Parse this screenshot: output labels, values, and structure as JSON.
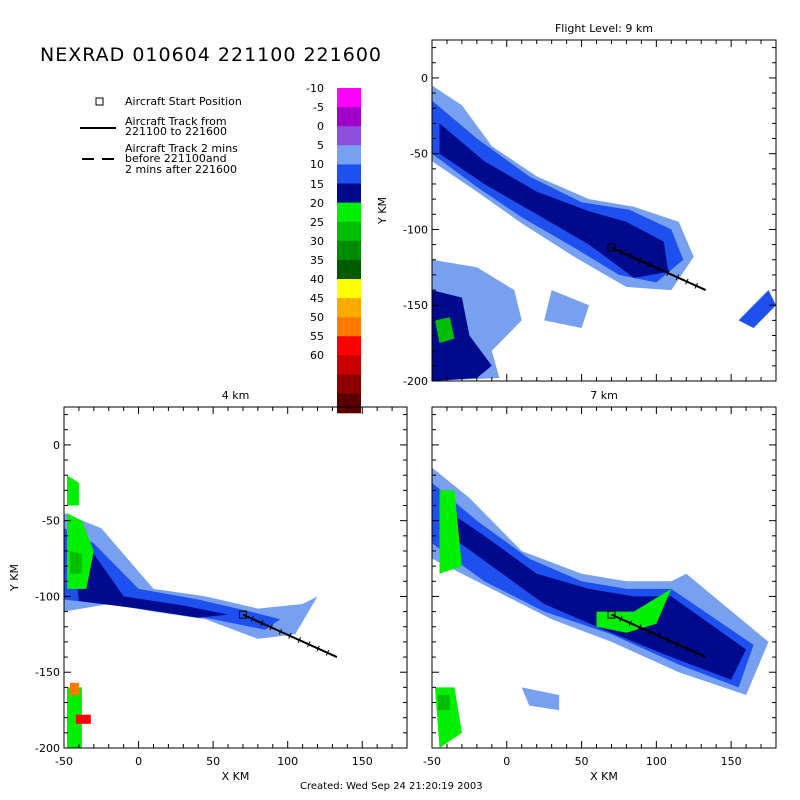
{
  "title": "NEXRAD 010604 221100 221600",
  "footer": "Created: Wed Sep 24 21:20:19 2003",
  "legend": {
    "start": "Aircraft Start Position",
    "track_line1": "Aircraft Track from",
    "track_line2": "221100 to 221600",
    "dash_line1": "Aircraft Track 2 mins",
    "dash_line2": "before 221100and",
    "dash_line3": "2 mins after 221600"
  },
  "colorbar": {
    "labels": [
      "-10",
      "-5",
      "0",
      "5",
      "10",
      "15",
      "20",
      "25",
      "30",
      "35",
      "40",
      "45",
      "50",
      "55",
      "60"
    ],
    "colors": [
      "#ff00ff",
      "#a000c8",
      "#8c50dc",
      "#78a0f0",
      "#1e50f0",
      "#000a8c",
      "#00f000",
      "#00be00",
      "#008c00",
      "#005a00",
      "#ffff00",
      "#ffaa00",
      "#ff7800",
      "#ff0000",
      "#c80000",
      "#8c0000",
      "#5a0000"
    ]
  },
  "chart_data": [
    {
      "type": "heatmap",
      "title": "Flight Level: 9 km",
      "xlabel": "",
      "ylabel": "Y KM",
      "xlim": [
        -50,
        180
      ],
      "ylim": [
        -200,
        25
      ],
      "xticks": [],
      "yticks": [
        0,
        -50,
        -100,
        -150,
        -200
      ],
      "track": {
        "x": [
          70,
          133
        ],
        "y": [
          -112,
          -140
        ]
      },
      "start": {
        "x": 70,
        "y": -112
      }
    },
    {
      "type": "heatmap",
      "title": "4 km",
      "xlabel": "X KM",
      "ylabel": "Y KM",
      "xlim": [
        -50,
        180
      ],
      "ylim": [
        -200,
        25
      ],
      "xticks": [
        -50,
        0,
        50,
        100,
        150
      ],
      "yticks": [
        0,
        -50,
        -100,
        -150,
        -200
      ],
      "track": {
        "x": [
          70,
          133
        ],
        "y": [
          -112,
          -140
        ]
      },
      "start": {
        "x": 70,
        "y": -112
      }
    },
    {
      "type": "heatmap",
      "title": "7 km",
      "xlabel": "X KM",
      "ylabel": "",
      "xlim": [
        -50,
        180
      ],
      "ylim": [
        -200,
        25
      ],
      "xticks": [
        -50,
        0,
        50,
        100,
        150
      ],
      "yticks": [],
      "track": {
        "x": [
          70,
          133
        ],
        "y": [
          -112,
          -140
        ]
      },
      "start": {
        "x": 70,
        "y": -112
      }
    }
  ]
}
